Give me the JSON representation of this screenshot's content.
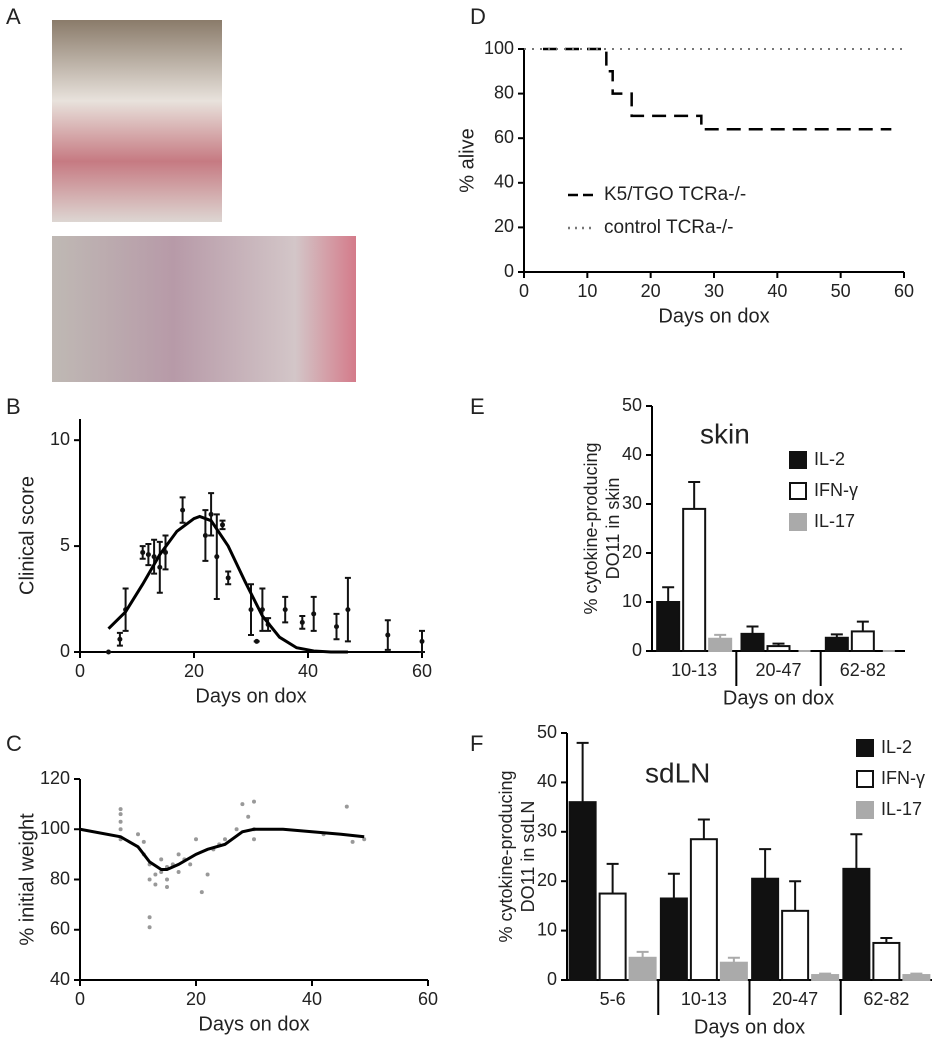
{
  "photo_panel": {
    "label": "A"
  },
  "chart_data": [
    {
      "type": "scatter",
      "panel_label": "B",
      "x_label": "Days on dox",
      "y_label": "Clinical score",
      "xlim": [
        0,
        60
      ],
      "xticks": [
        0,
        20,
        40,
        60
      ],
      "ylim": [
        0,
        11
      ],
      "yticks": [
        0,
        5,
        10
      ],
      "series": [
        {
          "style": "points",
          "color": "#111111",
          "x": [
            5,
            7,
            8,
            11,
            12,
            13,
            14,
            15,
            18,
            22,
            23,
            24,
            25,
            26,
            30,
            31,
            32,
            33,
            36,
            39,
            41,
            45,
            47,
            54,
            60
          ],
          "values": [
            0,
            0.6,
            2,
            4.7,
            4.6,
            4.5,
            4,
            4.7,
            6.7,
            5.5,
            6.5,
            4.5,
            6,
            3.5,
            2,
            0.5,
            2,
            1.3,
            2,
            1.4,
            1.8,
            1.2,
            2,
            0.8,
            0.5
          ],
          "errors": [
            0,
            0.3,
            1,
            0.3,
            0.5,
            0.8,
            1.2,
            0.8,
            0.6,
            1.2,
            1,
            2,
            0.2,
            0.3,
            1.2,
            0,
            1,
            0.3,
            0.6,
            0.3,
            0.8,
            0.6,
            1.5,
            0.7,
            0.5
          ]
        },
        {
          "style": "line",
          "color": "#000000",
          "x": [
            5,
            8,
            11,
            14,
            17,
            20,
            21,
            23,
            26,
            29,
            32,
            35,
            38,
            41,
            44,
            47
          ],
          "values": [
            1.1,
            1.9,
            3.2,
            4.6,
            5.7,
            6.3,
            6.4,
            6.2,
            5,
            3.3,
            1.7,
            0.7,
            0.2,
            0.05,
            0,
            0
          ]
        }
      ]
    },
    {
      "type": "scatter",
      "panel_label": "C",
      "x_label": "Days on dox",
      "y_label": "% initial weight",
      "xlim": [
        0,
        60
      ],
      "xticks": [
        0,
        20,
        40,
        60
      ],
      "ylim": [
        40,
        120
      ],
      "yticks": [
        40,
        60,
        80,
        100,
        120
      ],
      "series": [
        {
          "style": "points",
          "color": "#999999",
          "x": [
            7,
            7,
            7,
            7,
            7,
            10,
            11,
            11,
            12,
            12,
            12,
            12,
            13,
            13,
            14,
            14,
            15,
            15,
            15,
            16,
            17,
            17,
            18,
            19,
            20,
            21,
            22,
            23,
            24,
            25,
            27,
            28,
            29,
            30,
            30,
            30,
            42,
            46,
            47,
            49
          ],
          "values": [
            108,
            106,
            103,
            100,
            96,
            98,
            90,
            95,
            86,
            80,
            65,
            61,
            78,
            82,
            83,
            88,
            80,
            77,
            85,
            86,
            90,
            83,
            88,
            86,
            96,
            75,
            82,
            92,
            94,
            96,
            100,
            110,
            105,
            111,
            96,
            100,
            98,
            109,
            95,
            96
          ]
        },
        {
          "style": "line",
          "color": "#000000",
          "x": [
            0,
            7,
            10,
            12,
            14,
            15,
            17,
            20,
            22,
            25,
            28,
            30,
            35,
            40,
            45,
            49
          ],
          "values": [
            100,
            97,
            93,
            87,
            84,
            84,
            86,
            90,
            92,
            94,
            99,
            100,
            100,
            99,
            98,
            97
          ]
        }
      ]
    },
    {
      "type": "line",
      "panel_label": "D",
      "x_label": "Days on dox",
      "y_label": "% alive",
      "xlim": [
        0,
        60
      ],
      "xticks": [
        0,
        10,
        20,
        30,
        40,
        50,
        60
      ],
      "ylim": [
        0,
        100
      ],
      "yticks": [
        0,
        20,
        40,
        60,
        80,
        100
      ],
      "series": [
        {
          "name": "K5/TGO TCRa-/-",
          "color": "#000000",
          "dash": "dashed",
          "x": [
            3,
            13,
            13,
            14,
            14,
            17,
            17,
            28,
            28,
            58
          ],
          "values": [
            100,
            100,
            90,
            90,
            80,
            80,
            70,
            70,
            64,
            64
          ]
        },
        {
          "name": "control TCRa-/-",
          "color": "#777777",
          "dash": "dotted",
          "x": [
            0,
            60
          ],
          "values": [
            100,
            100
          ]
        }
      ]
    },
    {
      "type": "bar",
      "panel_label": "E",
      "title": "skin",
      "x_label": "Days on dox",
      "y_label": [
        "% cytokine-producing",
        "DO11 in skin"
      ],
      "categories": [
        "10-13",
        "20-47",
        "62-82"
      ],
      "ylim": [
        0,
        50
      ],
      "yticks": [
        0,
        10,
        20,
        30,
        40,
        50
      ],
      "series": [
        {
          "name": "IL-2",
          "color": "#111111",
          "values": [
            10,
            3.5,
            2.7
          ],
          "errors": [
            3,
            1.5,
            0.7
          ]
        },
        {
          "name": "IFN-γ",
          "color": "#ffffff",
          "values": [
            29,
            1,
            4
          ],
          "errors": [
            5.5,
            0.5,
            2
          ]
        },
        {
          "name": "IL-17",
          "color": "#aaaaaa",
          "values": [
            2.5,
            0,
            0
          ],
          "errors": [
            0.8,
            0,
            0
          ]
        }
      ]
    },
    {
      "type": "bar",
      "panel_label": "F",
      "title": "sdLN",
      "x_label": "Days on dox",
      "y_label": [
        "% cytokine-producing",
        "DO11 in sdLN"
      ],
      "categories": [
        "5-6",
        "10-13",
        "20-47",
        "62-82"
      ],
      "ylim": [
        0,
        50
      ],
      "yticks": [
        0,
        10,
        20,
        30,
        40,
        50
      ],
      "series": [
        {
          "name": "IL-2",
          "color": "#111111",
          "values": [
            36,
            16.5,
            20.5,
            22.5
          ],
          "errors": [
            12,
            5,
            6,
            7
          ]
        },
        {
          "name": "IFN-γ",
          "color": "#ffffff",
          "values": [
            17.5,
            28.5,
            14,
            7.5
          ],
          "errors": [
            6,
            4,
            6,
            1
          ]
        },
        {
          "name": "IL-17",
          "color": "#aaaaaa",
          "values": [
            4.5,
            3.5,
            1,
            1
          ],
          "errors": [
            1.2,
            1,
            0.3,
            0.3
          ]
        }
      ]
    }
  ]
}
